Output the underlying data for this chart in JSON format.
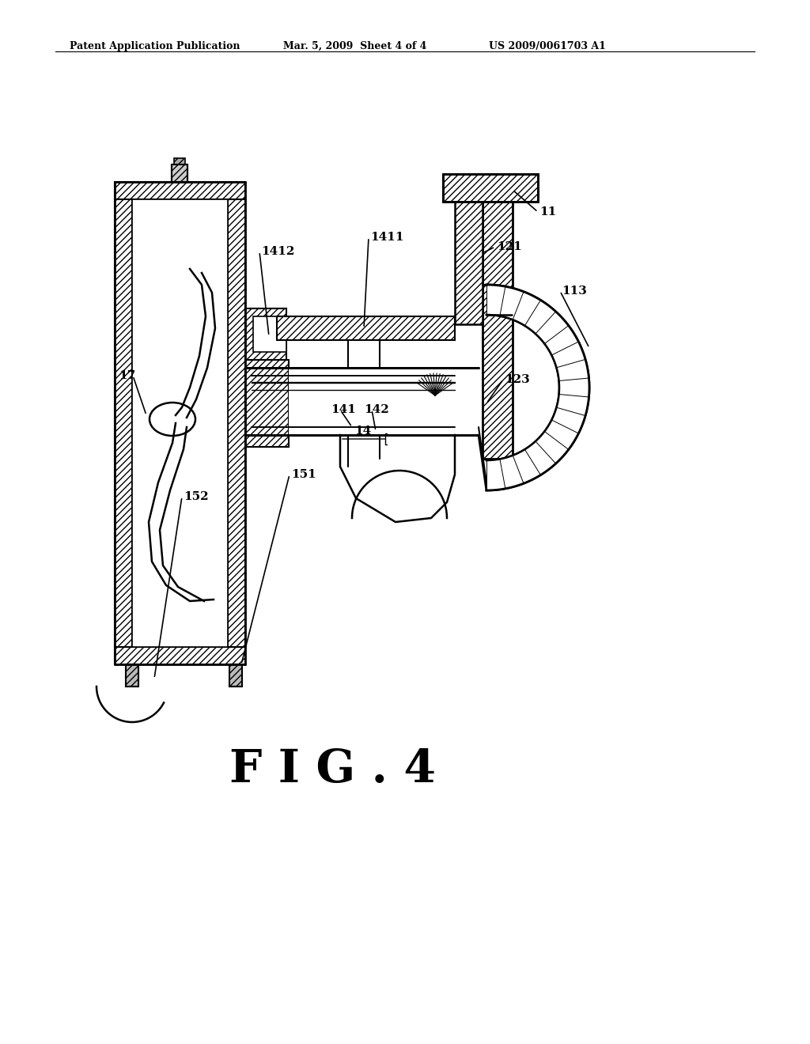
{
  "bg_color": "#ffffff",
  "line_color": "#000000",
  "header_left": "Patent Application Publication",
  "header_center": "Mar. 5, 2009  Sheet 4 of 4",
  "header_right": "US 2009/0061703 A1",
  "figure_label": "F I G . 4"
}
